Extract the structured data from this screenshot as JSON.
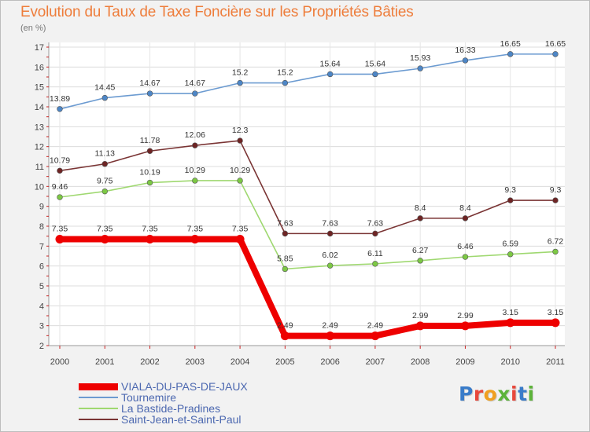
{
  "chart_data": {
    "type": "line",
    "title": "Evolution du Taux de Taxe Foncière sur les Propriétés Bâties",
    "unit_label": "(en %)",
    "xlabel": "",
    "ylabel": "(en %)",
    "x": [
      "2000",
      "2001",
      "2002",
      "2003",
      "2004",
      "2005",
      "2006",
      "2007",
      "2008",
      "2009",
      "2010",
      "2011"
    ],
    "ylim": [
      2,
      17
    ],
    "yticks": [
      2,
      3,
      4,
      5,
      6,
      7,
      8,
      9,
      10,
      11,
      12,
      13,
      14,
      15,
      16,
      17
    ],
    "grid": true,
    "legend": "bottom",
    "series": [
      {
        "name": "Tournemire",
        "color": "#6c9bd1",
        "marker": "#4d86c6",
        "values": [
          13.89,
          14.45,
          14.67,
          14.67,
          15.2,
          15.2,
          15.64,
          15.64,
          15.93,
          16.33,
          16.65,
          16.65
        ],
        "labels": [
          "13.89",
          "14.45",
          "14.67",
          "14.67",
          "15.2",
          "15.2",
          "15.64",
          "15.64",
          "15.93",
          "16.33",
          "16.65",
          "16.65"
        ]
      },
      {
        "name": "Saint-Jean-et-Saint-Paul",
        "color": "#7a3434",
        "marker": "#6e2424",
        "values": [
          10.79,
          11.13,
          11.78,
          12.06,
          12.3,
          7.63,
          7.63,
          7.63,
          8.4,
          8.4,
          9.3,
          9.3
        ],
        "labels": [
          "10.79",
          "11.13",
          "11.78",
          "12.06",
          "12.3",
          "7.63",
          "7.63",
          "7.63",
          "8.4",
          "8.4",
          "9.3",
          "9.3"
        ]
      },
      {
        "name": "La Bastide-Pradines",
        "color": "#9fd870",
        "marker": "#7cc844",
        "values": [
          9.46,
          9.75,
          10.19,
          10.29,
          10.29,
          5.85,
          6.02,
          6.11,
          6.27,
          6.46,
          6.59,
          6.72
        ],
        "labels": [
          "9.46",
          "9.75",
          "10.19",
          "10.29",
          "10.29",
          "5.85",
          "6.02",
          "6.11",
          "6.27",
          "6.46",
          "6.59",
          "6.72"
        ]
      },
      {
        "name": "VIALA-DU-PAS-DE-JAUX",
        "color": "#ee0000",
        "marker": "#ee0000",
        "values": [
          7.35,
          7.35,
          7.35,
          7.35,
          7.35,
          2.49,
          2.49,
          2.49,
          2.99,
          2.99,
          3.15,
          3.15
        ],
        "labels": [
          "7.35",
          "7.35",
          "7.35",
          "7.35",
          "7.35",
          "2.49",
          "2.49",
          "2.49",
          "2.99",
          "2.99",
          "3.15",
          "3.15"
        ]
      }
    ]
  },
  "legend": {
    "items": [
      {
        "label": "VIALA-DU-PAS-DE-JAUX",
        "color": "#ee0000"
      },
      {
        "label": "Tournemire",
        "color": "#6c9bd1"
      },
      {
        "label": "La Bastide-Pradines",
        "color": "#9fd870"
      },
      {
        "label": "Saint-Jean-et-Saint-Paul",
        "color": "#7a3434"
      }
    ]
  },
  "logo": {
    "text": "Proxiti",
    "letter_colors": [
      "#3a7cc9",
      "#e8483c",
      "#f0a020",
      "#5db33a",
      "#e8483c",
      "#3a7cc9",
      "#5db33a"
    ]
  }
}
